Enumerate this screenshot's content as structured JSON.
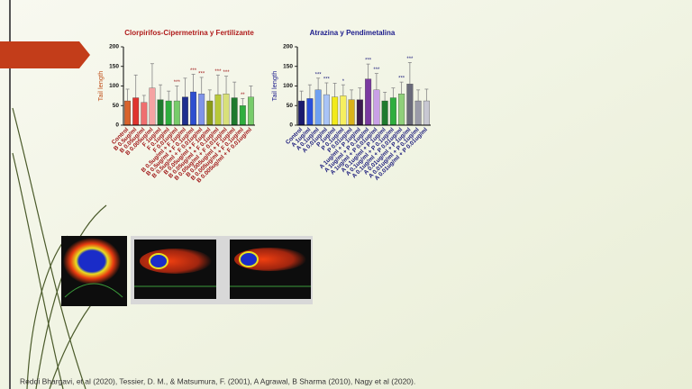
{
  "chart_data": [
    {
      "type": "bar",
      "title": "Clorpirifos-Cipermetrina y Fertilizante",
      "y_label": "Tail length",
      "categories": [
        "Control",
        "B 0.5ug/ml",
        "B 0.05ug/ml",
        "B 0.005ug/ml",
        "F 1ug/ml",
        "F 0.1ug/ml",
        "F 0.01ug/ml",
        "B 0.5ug/ml + F 1ug/ml",
        "B 0.5ug/ml + F 0.1ug/ml",
        "B 0.5ug/ml + F 0.01ug/ml",
        "B 0.05ug/ml + F 1ug/ml",
        "B 0.05ug/ml + F 0.1ug/ml",
        "B 0.05ug/ml + F 0.01ug/ml",
        "B 0.005ug/ml + F 1ug/ml",
        "B 0.005ug/ml + F 0.1ug/ml",
        "B 0.005ug/ml + F 0.01ug/ml"
      ],
      "values": [
        62,
        70,
        58,
        95,
        65,
        62,
        62,
        72,
        85,
        80,
        62,
        78,
        80,
        70,
        50,
        72
      ],
      "errors": [
        30,
        58,
        18,
        62,
        38,
        25,
        38,
        48,
        45,
        42,
        28,
        50,
        45,
        40,
        18,
        28
      ],
      "annotations": [
        null,
        null,
        null,
        null,
        null,
        null,
        "***",
        null,
        "***",
        "***",
        null,
        "***",
        "***",
        null,
        "**",
        null
      ],
      "colors": [
        "#d9632b",
        "#e0332e",
        "#ef6f6f",
        "#f5a3a3",
        "#1f7a2e",
        "#2fae3e",
        "#77cc6a",
        "#1f2f8f",
        "#2e4fd0",
        "#7f93e8",
        "#8a9a1a",
        "#b8c83a",
        "#d8e07a",
        "#1f7a2e",
        "#2fae3e",
        "#77cc6a"
      ],
      "ylim": [
        0,
        200
      ],
      "yticks": [
        0,
        50,
        100,
        150,
        200
      ]
    },
    {
      "type": "bar",
      "title": "Atrazina y Pendimetalina",
      "y_label": "Tail length",
      "categories": [
        "Control",
        "A 1ug/ml",
        "A 0.1ug/ml",
        "A 0.01ug/ml",
        "P 1ug/ml",
        "P 0.1ug/ml",
        "P 0.01ug/ml",
        "A 1ug/ml + P 1ug/ml",
        "A 1ug/ml + P 0.1ug/ml",
        "A 1ug/ml + P 0.01ug/ml",
        "A 0.1ug/ml + P 1ug/ml",
        "A 0.1ug/ml + P 0.1ug/ml",
        "A 0.1ug/ml + P 0.01ug/ml",
        "A 0.01ug/ml + P 1ug/ml",
        "A 0.01ug/ml + P 0.1ug/ml",
        "A 0.01ug/ml + P 0.01ug/ml"
      ],
      "values": [
        62,
        68,
        90,
        78,
        72,
        75,
        65,
        65,
        118,
        90,
        62,
        70,
        80,
        105,
        62,
        62
      ],
      "errors": [
        25,
        35,
        30,
        30,
        35,
        28,
        25,
        30,
        38,
        42,
        22,
        25,
        30,
        55,
        28,
        30
      ],
      "annotations": [
        null,
        null,
        "***",
        "***",
        null,
        "*",
        null,
        null,
        "***",
        "***",
        null,
        null,
        "***",
        "***",
        null,
        null
      ],
      "colors": [
        "#1a1a6e",
        "#2a4fd8",
        "#6fa0f0",
        "#a9c4f6",
        "#f2ea1a",
        "#f6ef60",
        "#d9b21a",
        "#3a1a4e",
        "#7a3aa0",
        "#c9a0e6",
        "#1f7a2e",
        "#2fae3e",
        "#8fd07a",
        "#6a6a7a",
        "#9a9aa8",
        "#c8c8d2"
      ],
      "ylim": [
        0,
        200
      ],
      "yticks": [
        0,
        50,
        100,
        150,
        200
      ]
    }
  ],
  "footer": "Reddi Bhargavi, et al (2020), Tessier, D. M., & Matsumura, F. (2001), A Agrawal, B Sharma  (2010), Nagy et al (2020)."
}
